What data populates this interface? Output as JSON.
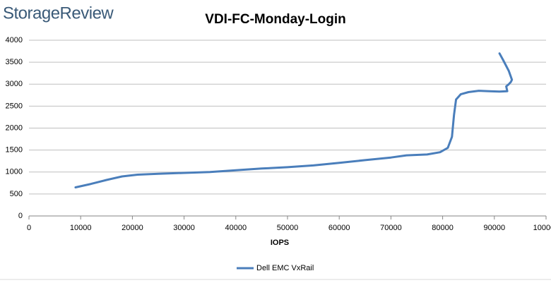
{
  "brand": "StorageReview",
  "chart_data": {
    "type": "line",
    "title": "VDI-FC-Monday-Login",
    "xlabel": "IOPS",
    "x": [
      9000,
      12000,
      15000,
      18000,
      21000,
      25000,
      30000,
      35000,
      40000,
      45000,
      50000,
      55000,
      60000,
      65000,
      70000,
      73000,
      77000,
      79500,
      81000,
      81800,
      82200,
      82600,
      83500,
      85000,
      87000,
      89000,
      91000,
      92500,
      92300,
      92800,
      93200,
      93400,
      92800,
      91700,
      91000
    ],
    "series": [
      {
        "name": "Dell EMC VxRail",
        "color": "#4a7ebb",
        "values": [
          650,
          730,
          820,
          900,
          940,
          960,
          980,
          1000,
          1040,
          1080,
          1110,
          1150,
          1210,
          1270,
          1330,
          1380,
          1400,
          1450,
          1550,
          1800,
          2300,
          2650,
          2770,
          2820,
          2850,
          2840,
          2830,
          2840,
          2950,
          3000,
          3050,
          3100,
          3300,
          3550,
          3700
        ]
      }
    ],
    "xlim": [
      0,
      100000
    ],
    "xticks": [
      0,
      10000,
      20000,
      30000,
      40000,
      50000,
      60000,
      70000,
      80000,
      90000,
      100000
    ],
    "ylim": [
      0,
      4000
    ],
    "yticks": [
      0,
      500,
      1000,
      1500,
      2000,
      2500,
      3000,
      3500,
      4000
    ],
    "grid": true,
    "legend": "bottom"
  }
}
